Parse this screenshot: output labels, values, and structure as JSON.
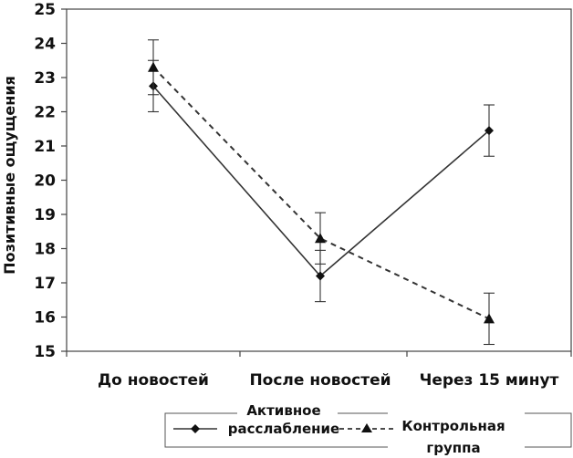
{
  "chart_data": {
    "type": "line",
    "ylabel": "Позитивные ощущения",
    "xlabel": "",
    "categories": [
      "До новостей",
      "После новостей",
      "Через 15 минут"
    ],
    "ylim": [
      15,
      25
    ],
    "yticks": [
      15,
      16,
      17,
      18,
      19,
      20,
      21,
      22,
      23,
      24,
      25
    ],
    "grid": false,
    "legend_position": "bottom",
    "series": [
      {
        "name_lines": [
          "Активное",
          "расслабление"
        ],
        "values": [
          22.75,
          17.2,
          21.45
        ],
        "errors": [
          0.75,
          0.75,
          0.75
        ],
        "line_style": "solid",
        "marker": "diamond",
        "color": "#333333"
      },
      {
        "name_lines": [
          "Контрольная",
          "группа"
        ],
        "values": [
          23.3,
          18.3,
          15.95
        ],
        "errors": [
          0.8,
          0.75,
          0.75
        ],
        "line_style": "dashed",
        "marker": "triangle",
        "color": "#333333"
      }
    ]
  }
}
